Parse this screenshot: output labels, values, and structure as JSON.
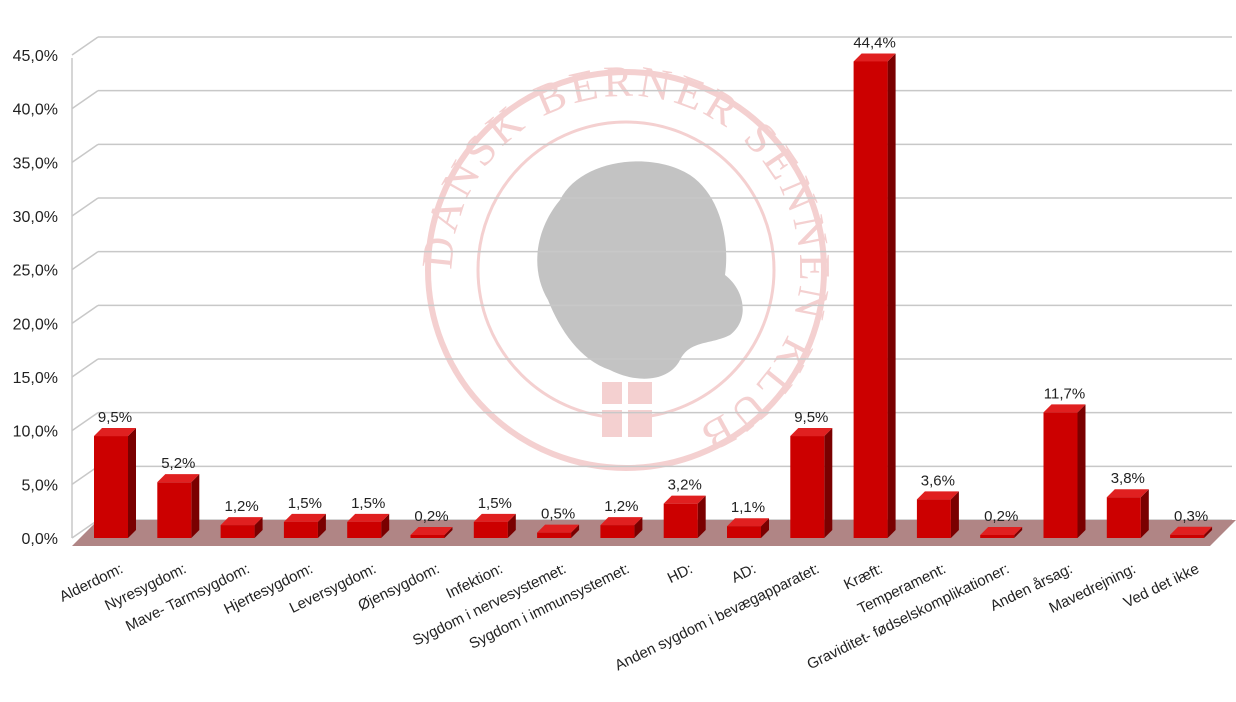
{
  "chart_data": {
    "type": "bar",
    "title": "",
    "xlabel": "",
    "ylabel": "",
    "ylim": [
      0,
      45
    ],
    "yticks": [
      "0,0%",
      "5,0%",
      "10,0%",
      "15,0%",
      "20,0%",
      "25,0%",
      "30,0%",
      "35,0%",
      "40,0%",
      "45,0%"
    ],
    "grid": true,
    "legend": "none",
    "bar_color": "#cc0000",
    "categories": [
      "Alderdom:",
      "Nyresygdom:",
      "Mave- Tarmsygdom:",
      "Hjertesygdom:",
      "Leversygdom:",
      "Øjensygdom:",
      "Infektion:",
      "Sygdom i nervesystemet:",
      "Sygdom i immunsystemet:",
      "HD:",
      "AD:",
      "Anden sygdom i bevægapparatet:",
      "Kræft:",
      "Temperament:",
      "Graviditet- fødselskomplikationer:",
      "Anden årsag:",
      "Mavedrejning:",
      "Ved det ikke"
    ],
    "values": [
      9.5,
      5.2,
      1.2,
      1.5,
      1.5,
      0.2,
      1.5,
      0.5,
      1.2,
      3.2,
      1.1,
      9.5,
      44.4,
      3.6,
      0.2,
      11.7,
      3.8,
      0.3
    ],
    "data_labels": [
      "9,5%",
      "5,2%",
      "1,2%",
      "1,5%",
      "1,5%",
      "0,2%",
      "1,5%",
      "0,5%",
      "1,2%",
      "3,2%",
      "1,1%",
      "9,5%",
      "44,4%",
      "3,6%",
      "0,2%",
      "11,7%",
      "3,8%",
      "0,3%"
    ]
  },
  "watermark": {
    "text": "DANSK BERNER SENNEN KLUB",
    "color": "#e07a7a"
  }
}
